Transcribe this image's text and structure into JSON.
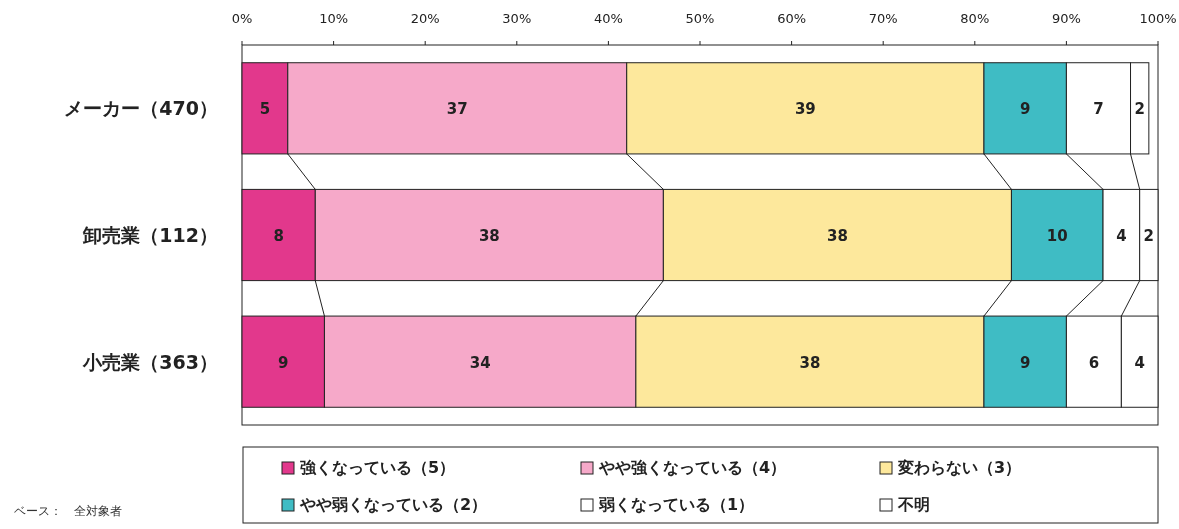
{
  "chart_data": {
    "type": "bar",
    "orientation": "horizontal",
    "stacked": true,
    "categories": [
      "メーカー（470）",
      "卸売業（112）",
      "小売業（363）"
    ],
    "series": [
      {
        "name": "強くなっている（5）",
        "color": "#e2388c",
        "values": [
          5,
          8,
          9
        ]
      },
      {
        "name": "やや強くなっている（4）",
        "color": "#f6a9c9",
        "values": [
          37,
          38,
          34
        ]
      },
      {
        "name": "変わらない（3）",
        "color": "#fde89c",
        "values": [
          39,
          38,
          38
        ]
      },
      {
        "name": "やや弱くなっている（2）",
        "color": "#3fbcc4",
        "values": [
          9,
          10,
          9
        ]
      },
      {
        "name": "弱くなっている（1）",
        "color": "#ffffff",
        "values": [
          7,
          4,
          6
        ]
      },
      {
        "name": "不明",
        "color": "#ffffff",
        "values": [
          2,
          2,
          4
        ]
      }
    ],
    "xlim": [
      0,
      100
    ],
    "xticks": [
      {
        "value": 0,
        "label": "0%"
      },
      {
        "value": 10,
        "label": "10%"
      },
      {
        "value": 20,
        "label": "20%"
      },
      {
        "value": 30,
        "label": "30%"
      },
      {
        "value": 40,
        "label": "40%"
      },
      {
        "value": 50,
        "label": "50%"
      },
      {
        "value": 60,
        "label": "60%"
      },
      {
        "value": 70,
        "label": "70%"
      },
      {
        "value": 80,
        "label": "80%"
      },
      {
        "value": 90,
        "label": "90%"
      },
      {
        "value": 100,
        "label": "100%"
      }
    ],
    "data_labels": true,
    "legend": "bottom",
    "grid": false,
    "annotations": [
      "ベース：　全対象者"
    ]
  }
}
